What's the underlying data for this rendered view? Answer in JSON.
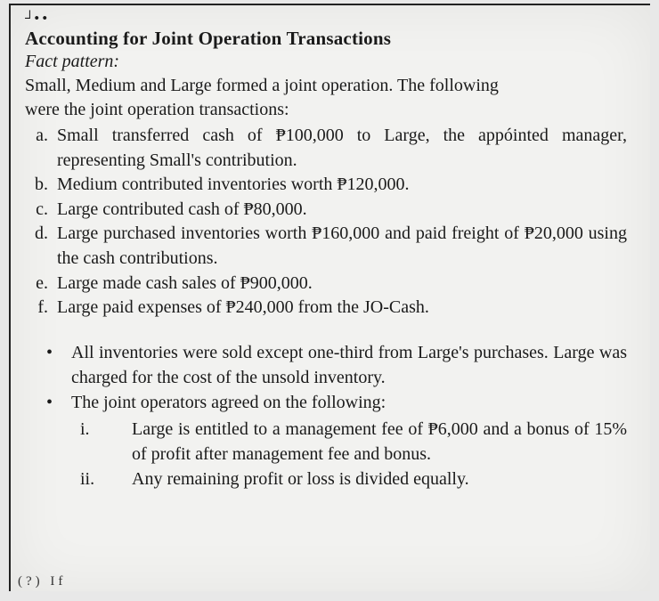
{
  "doc": {
    "dots": "┘• •",
    "heading": "Accounting for Joint Operation Transactions",
    "fact": "Fact pattern:",
    "intro1": "Small, Medium and Large formed a joint operation. The following",
    "intro2": "were the joint operation transactions:",
    "items": {
      "a_m": "a.",
      "a": "Small transferred cash of ₱100,000 to Large, the appóinted manager, representing Small's contribution.",
      "b_m": "b.",
      "b": "Medium contributed inventories worth ₱120,000.",
      "c_m": "c.",
      "c": "Large contributed cash of ₱80,000.",
      "d_m": "d.",
      "d": "Large purchased inventories worth ₱160,000 and paid freight of ₱20,000 using the cash contributions.",
      "e_m": "e.",
      "e": "Large made cash sales of ₱900,000.",
      "f_m": "f.",
      "f": "Large paid expenses of ₱240,000 from the JO-Cash."
    },
    "bullets": {
      "b1": "All inventories were sold except one-third from Large's purchases. Large was charged for the cost of the unsold inventory.",
      "b2": "The joint operators agreed on the following:"
    },
    "roman": {
      "i_m": "i.",
      "i": "Large is entitled to a management fee of ₱6,000 and a bonus of 15% of profit after management fee and bonus.",
      "ii_m": "ii.",
      "ii": "Any remaining profit or loss is divided equally."
    },
    "footer": "(?)  If"
  }
}
